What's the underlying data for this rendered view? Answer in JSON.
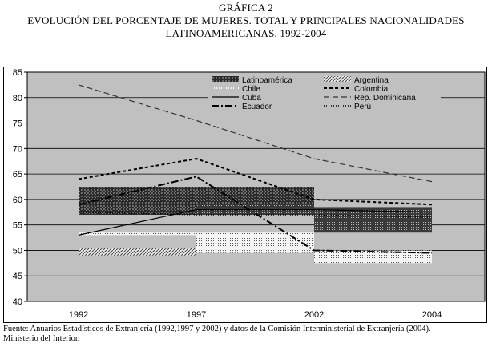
{
  "title": {
    "line1": "GRÁFICA 2",
    "line2": "EVOLUCIÓN DEL PORCENTAJE DE MUJERES. TOTAL Y PRINCIPALES NACIONALIDADES",
    "line3": "LATINOAMERICANAS, 1992-2004"
  },
  "source": {
    "line1": "Fuente: Anuarios Estadísticos de Extranjería (1992,1997 y 2002) y datos de la Comisión Interministerial de Extranjería (2004).",
    "line2": "Ministerio del Interior."
  },
  "chart_data": {
    "type": "line",
    "categories": [
      "1992",
      "1997",
      "2002",
      "2004"
    ],
    "ylim": [
      40,
      85
    ],
    "yticks": [
      40,
      45,
      50,
      55,
      60,
      65,
      70,
      75,
      80,
      85
    ],
    "plot_background": "#c0c0c0",
    "legend_position": "top-right",
    "series": [
      {
        "name": "Latinoamérica",
        "values": [
          60,
          60,
          60,
          56
        ],
        "style": "band-dark",
        "color": "#111111"
      },
      {
        "name": "Argentina",
        "values": [
          49.5,
          49.5,
          48,
          47.5
        ],
        "style": "band-hatch",
        "color": "#555555"
      },
      {
        "name": "Chile",
        "values": [
          53,
          53,
          51.5,
          51.5
        ],
        "style": "dotted",
        "color": "#ffffff"
      },
      {
        "name": "Colombia",
        "values": [
          64,
          68,
          60,
          59
        ],
        "style": "dashed-short",
        "color": "#000000"
      },
      {
        "name": "Cuba",
        "values": [
          53,
          58,
          58,
          57.5
        ],
        "style": "solid",
        "color": "#000000"
      },
      {
        "name": "Rep. Dominicana",
        "values": [
          82.5,
          75.5,
          68,
          63.5
        ],
        "style": "dashed-long",
        "color": "#333333"
      },
      {
        "name": "Ecuador",
        "values": [
          59,
          64.5,
          50,
          49.5
        ],
        "style": "dash-dot",
        "color": "#000000"
      },
      {
        "name": "Perú",
        "values": [
          57.5,
          57,
          57,
          56.5
        ],
        "style": "dotted-fine",
        "color": "#000000"
      }
    ]
  }
}
